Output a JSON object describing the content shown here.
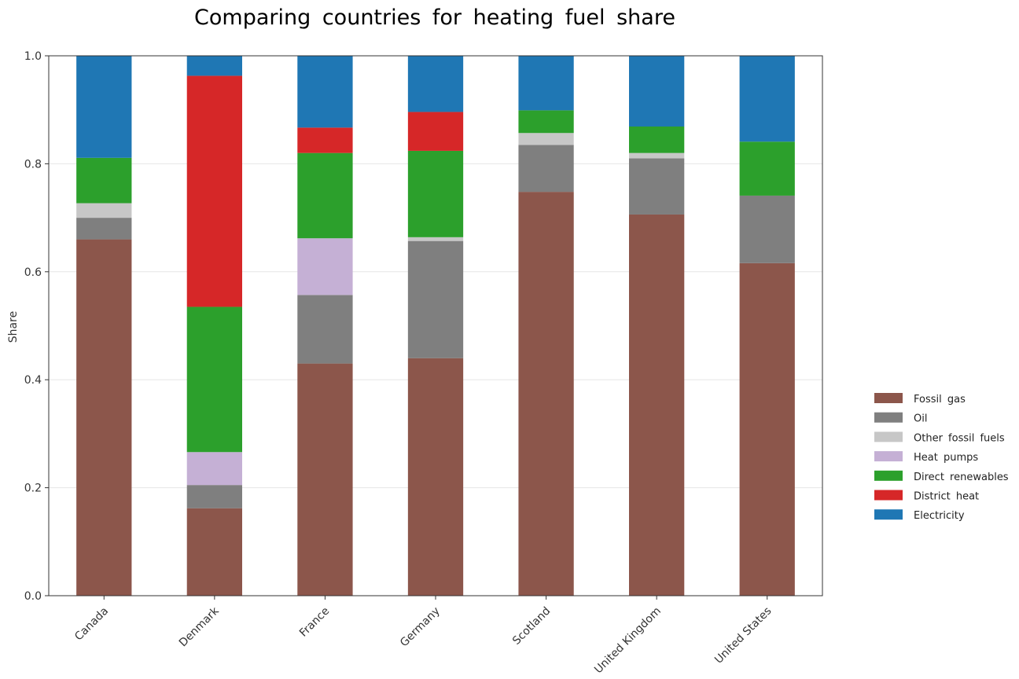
{
  "chart_data": {
    "type": "bar",
    "stacked": true,
    "title": "Comparing countries for heating fuel share",
    "xlabel": "",
    "ylabel": "Share",
    "ylim": [
      0,
      1
    ],
    "yticks": [
      "0.0",
      "0.2",
      "0.4",
      "0.6",
      "0.8",
      "1.0"
    ],
    "grid": "horizontal",
    "legend_position": "right",
    "categories": [
      "Canada",
      "Denmark",
      "France",
      "Germany",
      "Scotland",
      "United Kingdom",
      "United States"
    ],
    "series": [
      {
        "name": "Fossil gas",
        "color": "#8c564b",
        "values": [
          0.66,
          0.162,
          0.43,
          0.44,
          0.748,
          0.706,
          0.616
        ]
      },
      {
        "name": "Oil",
        "color": "#7f7f7f",
        "values": [
          0.04,
          0.043,
          0.127,
          0.217,
          0.087,
          0.104,
          0.125
        ]
      },
      {
        "name": "Other fossil fuels",
        "color": "#c7c7c7",
        "values": [
          0.027,
          0.0,
          0.0,
          0.007,
          0.022,
          0.01,
          0.0
        ]
      },
      {
        "name": "Heat pumps",
        "color": "#c5b0d5",
        "values": [
          0.0,
          0.061,
          0.105,
          0.0,
          0.0,
          0.0,
          0.0
        ]
      },
      {
        "name": "Direct renewables",
        "color": "#2ca02c",
        "values": [
          0.084,
          0.269,
          0.158,
          0.16,
          0.042,
          0.049,
          0.1
        ]
      },
      {
        "name": "District heat",
        "color": "#d62728",
        "values": [
          0.0,
          0.428,
          0.047,
          0.072,
          0.0,
          0.0,
          0.0
        ]
      },
      {
        "name": "Electricity",
        "color": "#1f77b4",
        "values": [
          0.189,
          0.037,
          0.133,
          0.104,
          0.101,
          0.131,
          0.159
        ]
      }
    ]
  }
}
